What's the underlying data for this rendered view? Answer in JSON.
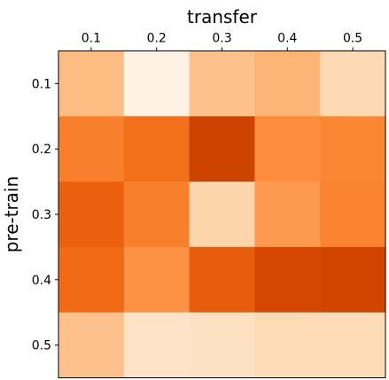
{
  "chart_data": {
    "type": "heatmap",
    "title": "",
    "xlabel": "transfer",
    "ylabel": "pre-train",
    "x_axis_position": "top",
    "x_categories": [
      "0.1",
      "0.2",
      "0.3",
      "0.4",
      "0.5"
    ],
    "y_categories": [
      "0.1",
      "0.2",
      "0.3",
      "0.4",
      "0.5"
    ],
    "colormap": "Oranges",
    "color_range": [
      0,
      1
    ],
    "values": [
      [
        0.32,
        0.03,
        0.3,
        0.35,
        0.2
      ],
      [
        0.55,
        0.6,
        0.78,
        0.5,
        0.52
      ],
      [
        0.66,
        0.55,
        0.22,
        0.45,
        0.53
      ],
      [
        0.62,
        0.48,
        0.67,
        0.76,
        0.77
      ],
      [
        0.3,
        0.14,
        0.16,
        0.19,
        0.19
      ]
    ],
    "grid": false,
    "legend": "none",
    "colorbar": false
  }
}
